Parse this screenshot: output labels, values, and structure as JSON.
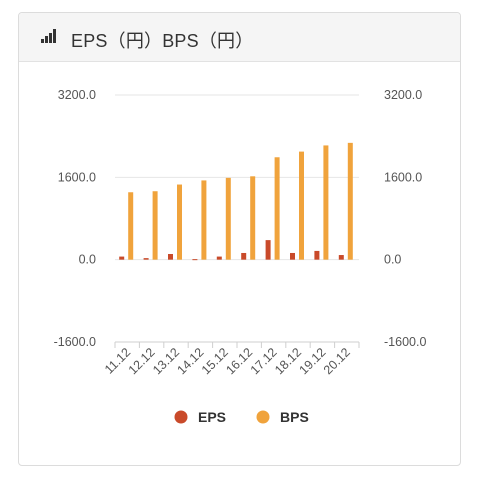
{
  "header": {
    "title": "EPS（円）BPS（円）",
    "icon": "signal-bars-icon"
  },
  "chart_data": {
    "type": "bar",
    "categories": [
      "11.12",
      "12.12",
      "13.12",
      "14.12",
      "15.12",
      "16.12",
      "17.12",
      "18.12",
      "19.12",
      "20.12"
    ],
    "series": [
      {
        "name": "EPS",
        "color": "#c94a2a",
        "values": [
          60,
          30,
          110,
          10,
          60,
          130,
          380,
          130,
          170,
          90
        ]
      },
      {
        "name": "BPS",
        "color": "#f0a33c",
        "values": [
          1310,
          1330,
          1460,
          1540,
          1590,
          1620,
          1990,
          2100,
          2220,
          2270
        ]
      }
    ],
    "y_ticks": [
      "3200.0",
      "1600.0",
      "0.0",
      "-1600.0"
    ],
    "y_tick_values": [
      3200,
      1600,
      0,
      -1600
    ],
    "ylim": [
      -1600,
      3200
    ],
    "grid": true,
    "legend": "bottom",
    "dual_axis": true
  }
}
